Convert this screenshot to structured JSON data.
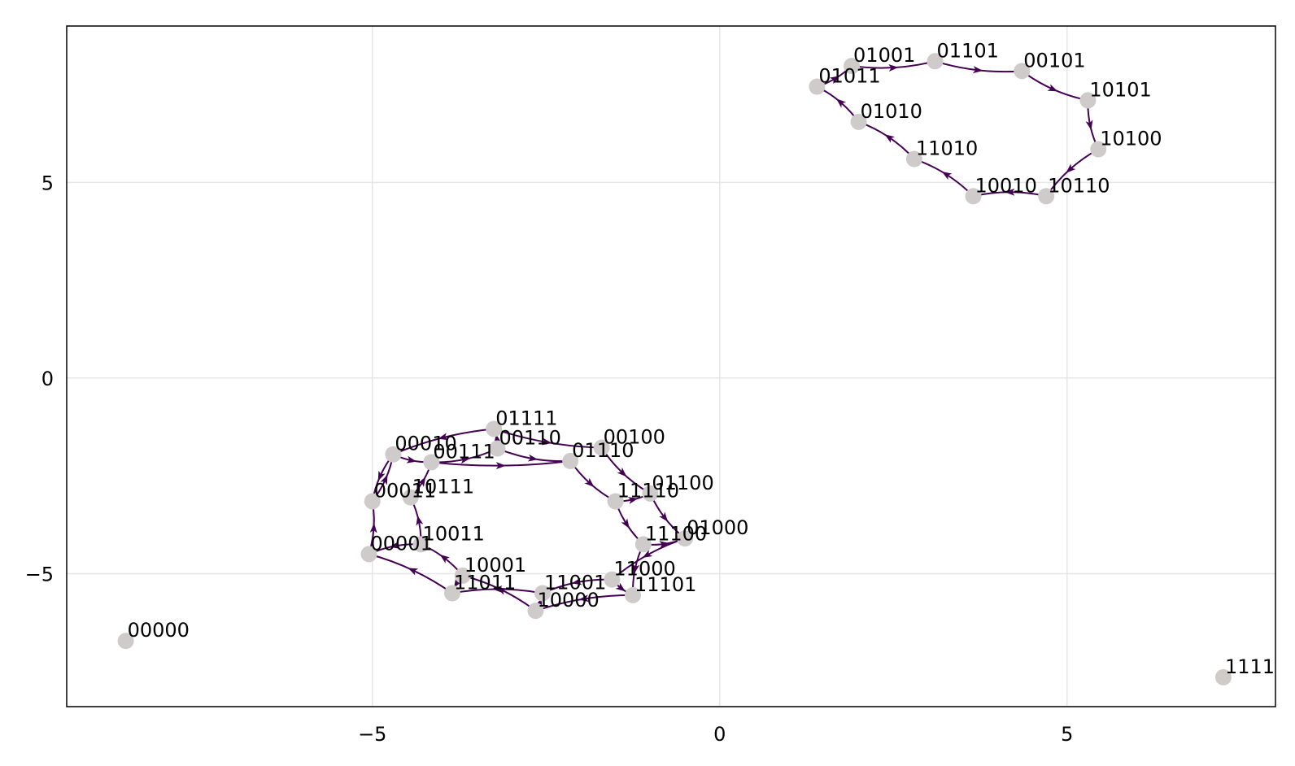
{
  "chart_data": {
    "type": "graph",
    "xlim": [
      -9.4,
      8.0
    ],
    "ylim": [
      -8.4,
      9.0
    ],
    "x_ticks": [
      {
        "value": -5,
        "label": "−5"
      },
      {
        "value": 0,
        "label": "0"
      },
      {
        "value": 5,
        "label": "5"
      }
    ],
    "y_ticks": [
      {
        "value": -5,
        "label": "−5"
      },
      {
        "value": 0,
        "label": "0"
      },
      {
        "value": 5,
        "label": "5"
      }
    ],
    "grid": true,
    "colors": {
      "edge": "#440154",
      "node": "#cfcbcb",
      "grid": "#e6e6e6"
    },
    "nodes": [
      {
        "id": "00000",
        "x": -8.55,
        "y": -6.72
      },
      {
        "id": "11111",
        "x": 7.25,
        "y": -7.65
      },
      {
        "id": "01001",
        "x": 1.9,
        "y": 7.98
      },
      {
        "id": "01101",
        "x": 3.1,
        "y": 8.1
      },
      {
        "id": "00101",
        "x": 4.35,
        "y": 7.85
      },
      {
        "id": "01011",
        "x": 1.4,
        "y": 7.45
      },
      {
        "id": "10101",
        "x": 5.3,
        "y": 7.1
      },
      {
        "id": "01010",
        "x": 2.0,
        "y": 6.55
      },
      {
        "id": "10100",
        "x": 5.45,
        "y": 5.85
      },
      {
        "id": "11010",
        "x": 2.8,
        "y": 5.6
      },
      {
        "id": "10010",
        "x": 3.65,
        "y": 4.65
      },
      {
        "id": "10110",
        "x": 4.7,
        "y": 4.65
      },
      {
        "id": "01111",
        "x": -3.25,
        "y": -1.3
      },
      {
        "id": "00110",
        "x": -3.2,
        "y": -1.8
      },
      {
        "id": "00100",
        "x": -1.7,
        "y": -1.78
      },
      {
        "id": "00010",
        "x": -4.7,
        "y": -1.95
      },
      {
        "id": "00111",
        "x": -4.15,
        "y": -2.15
      },
      {
        "id": "01110",
        "x": -2.15,
        "y": -2.12
      },
      {
        "id": "01100",
        "x": -1.0,
        "y": -2.95
      },
      {
        "id": "11110",
        "x": -1.5,
        "y": -3.15
      },
      {
        "id": "00011",
        "x": -5.0,
        "y": -3.15
      },
      {
        "id": "10111",
        "x": -4.45,
        "y": -3.05
      },
      {
        "id": "10011",
        "x": -4.3,
        "y": -4.25
      },
      {
        "id": "11100",
        "x": -1.1,
        "y": -4.25
      },
      {
        "id": "01000",
        "x": -0.5,
        "y": -4.1
      },
      {
        "id": "00001",
        "x": -5.05,
        "y": -4.5
      },
      {
        "id": "11000",
        "x": -1.55,
        "y": -5.15
      },
      {
        "id": "10001",
        "x": -3.7,
        "y": -5.05
      },
      {
        "id": "11011",
        "x": -3.85,
        "y": -5.5
      },
      {
        "id": "11001",
        "x": -2.55,
        "y": -5.5
      },
      {
        "id": "11101",
        "x": -1.25,
        "y": -5.55
      },
      {
        "id": "10000",
        "x": -2.65,
        "y": -5.95
      }
    ],
    "edges": [
      [
        "01011",
        "01001"
      ],
      [
        "01001",
        "01101"
      ],
      [
        "01101",
        "00101"
      ],
      [
        "00101",
        "10101"
      ],
      [
        "10101",
        "10100"
      ],
      [
        "10100",
        "10110"
      ],
      [
        "10110",
        "10010"
      ],
      [
        "10010",
        "11010"
      ],
      [
        "11010",
        "01010"
      ],
      [
        "01010",
        "01011"
      ],
      [
        "00010",
        "00111"
      ],
      [
        "00111",
        "00110"
      ],
      [
        "00110",
        "01111"
      ],
      [
        "00110",
        "01110"
      ],
      [
        "01111",
        "00100"
      ],
      [
        "00100",
        "01100"
      ],
      [
        "01110",
        "11110"
      ],
      [
        "01100",
        "01000"
      ],
      [
        "11110",
        "11100"
      ],
      [
        "01000",
        "11000"
      ],
      [
        "11100",
        "11101"
      ],
      [
        "11000",
        "11001"
      ],
      [
        "11101",
        "10000"
      ],
      [
        "11001",
        "11011"
      ],
      [
        "10000",
        "10001"
      ],
      [
        "11011",
        "00001"
      ],
      [
        "10001",
        "10011"
      ],
      [
        "00001",
        "00011"
      ],
      [
        "10011",
        "10111"
      ],
      [
        "00011",
        "00010"
      ],
      [
        "10111",
        "00111"
      ],
      [
        "00010",
        "00011"
      ],
      [
        "00111",
        "01110"
      ],
      [
        "01111",
        "00010"
      ],
      [
        "11110",
        "01100"
      ],
      [
        "11100",
        "01000"
      ],
      [
        "11000",
        "11101"
      ],
      [
        "10000",
        "11001"
      ],
      [
        "10001",
        "11011"
      ],
      [
        "10011",
        "00001"
      ]
    ]
  }
}
